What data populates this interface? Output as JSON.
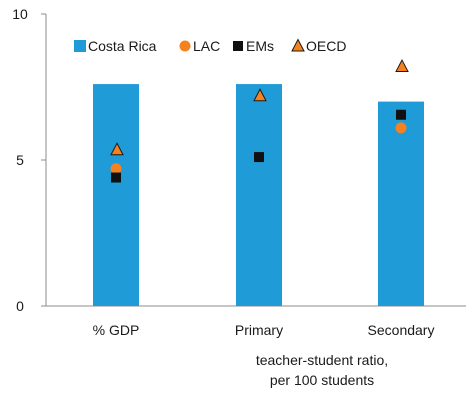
{
  "chart_data": {
    "type": "bar",
    "categories": [
      "% GDP",
      "Primary",
      "Secondary"
    ],
    "xlabel_lines": [
      "teacher-student ratio,",
      "per 100 students"
    ],
    "ylim": [
      0,
      10
    ],
    "yticks": [
      0,
      5,
      10
    ],
    "grid": false,
    "legend_position": "top",
    "series": [
      {
        "name": "Costa Rica",
        "kind": "bar",
        "color": "#1f9bd7",
        "values": [
          7.6,
          7.6,
          7.0
        ]
      },
      {
        "name": "LAC",
        "kind": "circle",
        "color": "#f5821f",
        "values": [
          4.7,
          null,
          6.1
        ]
      },
      {
        "name": "EMs",
        "kind": "square",
        "color": "#111111",
        "values": [
          4.4,
          5.1,
          6.55
        ]
      },
      {
        "name": "OECD",
        "kind": "triangle",
        "color": "#f5821f",
        "values": [
          5.35,
          7.2,
          8.2
        ]
      }
    ]
  }
}
